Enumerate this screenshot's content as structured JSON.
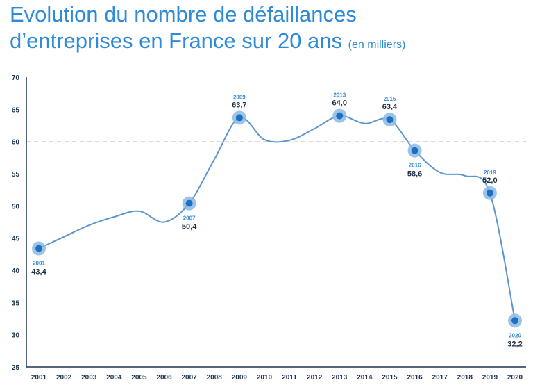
{
  "title": {
    "line1": "Evolution du nombre de défaillances",
    "line2": "d’entreprises en France sur 20 ans",
    "unit": "(en milliers)"
  },
  "colors": {
    "line": "#5b95cf",
    "marker_outer": "#8bb8e4",
    "marker_inner": "#1d6fc1",
    "title": "#2f8ad8",
    "axis": "#1f3552",
    "grid": "#d4d4d4"
  },
  "chart_data": {
    "type": "line",
    "title": "Evolution du nombre de défaillances d’entreprises en France sur 20 ans (en milliers)",
    "xlabel": "",
    "ylabel": "",
    "x": [
      "2001",
      "2002",
      "2003",
      "2004",
      "2005",
      "2006",
      "2007",
      "2008",
      "2009",
      "2010",
      "2011",
      "2012",
      "2013",
      "2014",
      "2015",
      "2016",
      "2017",
      "2018",
      "2019",
      "2020"
    ],
    "values": [
      43.4,
      45.2,
      47.0,
      48.3,
      49.2,
      47.5,
      50.4,
      57.2,
      63.7,
      60.3,
      60.2,
      62.0,
      64.0,
      62.8,
      63.4,
      58.6,
      55.2,
      54.7,
      52.0,
      32.2
    ],
    "ylim": [
      25,
      70
    ],
    "yticks": [
      25,
      30,
      35,
      40,
      45,
      50,
      55,
      60,
      65,
      70
    ],
    "dashed_gridlines": [
      50,
      60
    ],
    "grid": "dashed at 50 and 60 only",
    "smooth": true,
    "highlighted": [
      {
        "year": "2001",
        "label": "43,4",
        "pos": "below"
      },
      {
        "year": "2007",
        "label": "50,4",
        "pos": "below"
      },
      {
        "year": "2009",
        "label": "63,7",
        "pos": "above"
      },
      {
        "year": "2013",
        "label": "64,0",
        "pos": "above"
      },
      {
        "year": "2015",
        "label": "63,4",
        "pos": "above"
      },
      {
        "year": "2016",
        "label": "58,6",
        "pos": "below"
      },
      {
        "year": "2019",
        "label": "52,0",
        "pos": "above"
      },
      {
        "year": "2020",
        "label": "32,2",
        "pos": "below"
      }
    ]
  }
}
